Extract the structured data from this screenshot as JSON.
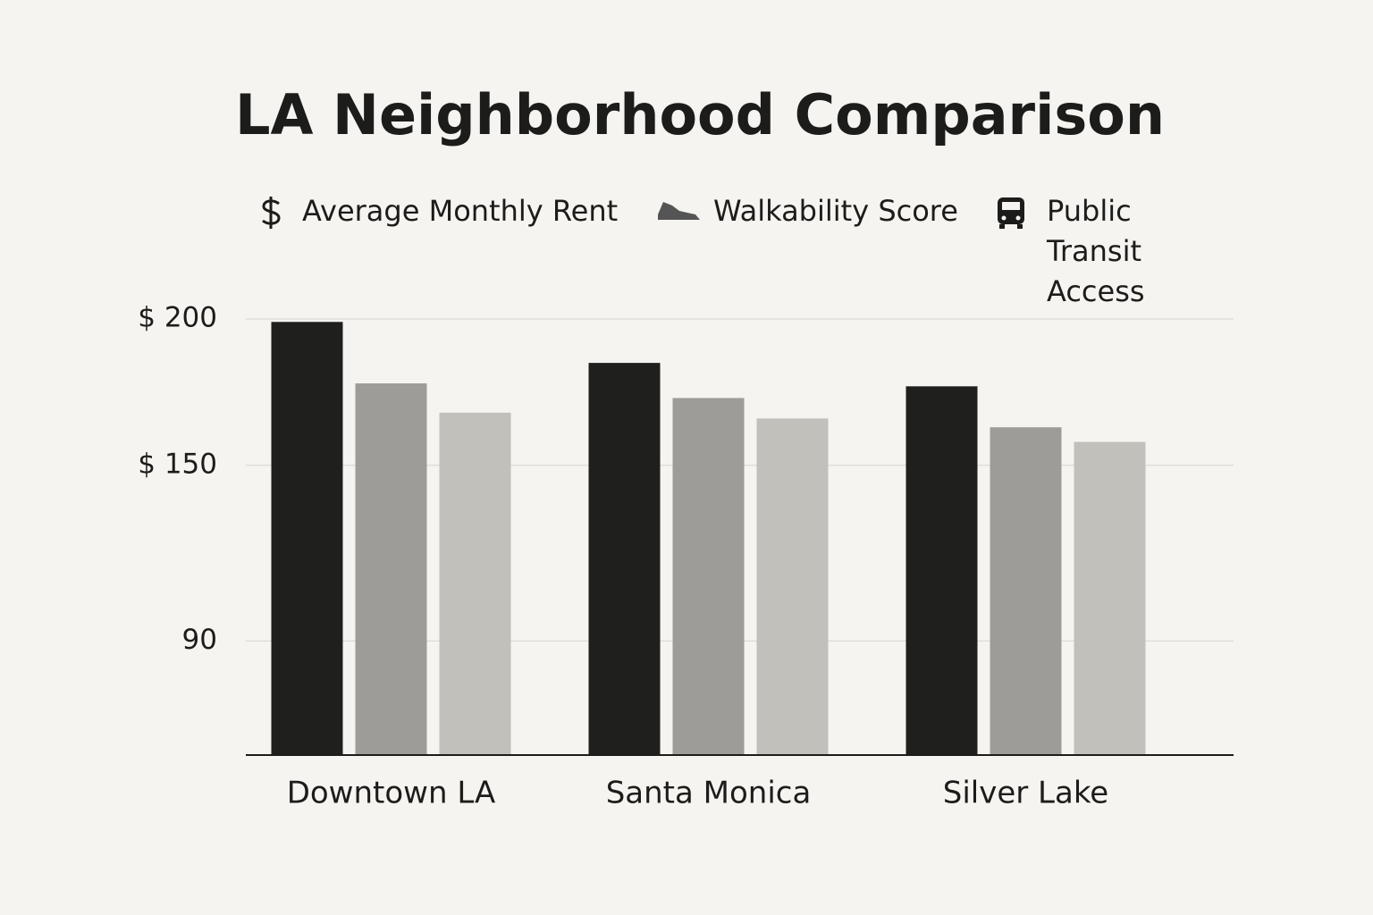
{
  "chart_data": {
    "type": "bar",
    "title": "LA Neighborhood Comparison",
    "categories": [
      "Downtown LA",
      "Santa Monica",
      "Silver Lake"
    ],
    "series": [
      {
        "name": "Average Monthly Rent",
        "color": "#1f201e",
        "values": [
          199,
          185,
          177
        ]
      },
      {
        "name": "Walkability Score",
        "color": "#9d9c98",
        "values": [
          178,
          173,
          163
        ]
      },
      {
        "name": "Public Transit Access",
        "color": "#c2c0bb",
        "values": [
          168,
          166,
          158
        ]
      }
    ],
    "ylim": [
      51,
      200
    ],
    "yticks": [
      {
        "value": 90,
        "label": "90"
      },
      {
        "value": 150,
        "label": "$ 150"
      },
      {
        "value": 200,
        "label": "$ 200"
      }
    ],
    "grid": true,
    "legend": "top"
  }
}
